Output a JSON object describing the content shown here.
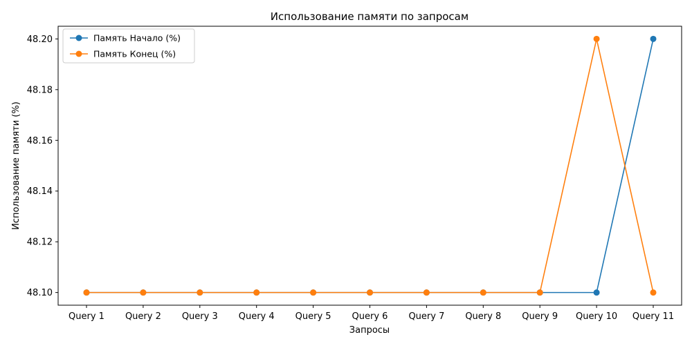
{
  "chart_data": {
    "type": "line",
    "title": "Использование памяти по запросам",
    "xlabel": "Запросы",
    "ylabel": "Использование памяти (%)",
    "categories": [
      "Query 1",
      "Query 2",
      "Query 3",
      "Query 4",
      "Query 5",
      "Query 6",
      "Query 7",
      "Query 8",
      "Query 9",
      "Query 10",
      "Query 11"
    ],
    "ylim": [
      48.095,
      48.205
    ],
    "yticks": [
      "48.10",
      "48.12",
      "48.14",
      "48.16",
      "48.18",
      "48.20"
    ],
    "grid": false,
    "legend_position": "upper-left",
    "series": [
      {
        "name": "Память Начало (%)",
        "color": "#1f77b4",
        "values": [
          48.1,
          48.1,
          48.1,
          48.1,
          48.1,
          48.1,
          48.1,
          48.1,
          48.1,
          48.1,
          48.2
        ]
      },
      {
        "name": "Память Конец (%)",
        "color": "#ff7f0e",
        "values": [
          48.1,
          48.1,
          48.1,
          48.1,
          48.1,
          48.1,
          48.1,
          48.1,
          48.1,
          48.2,
          48.1
        ]
      }
    ]
  }
}
